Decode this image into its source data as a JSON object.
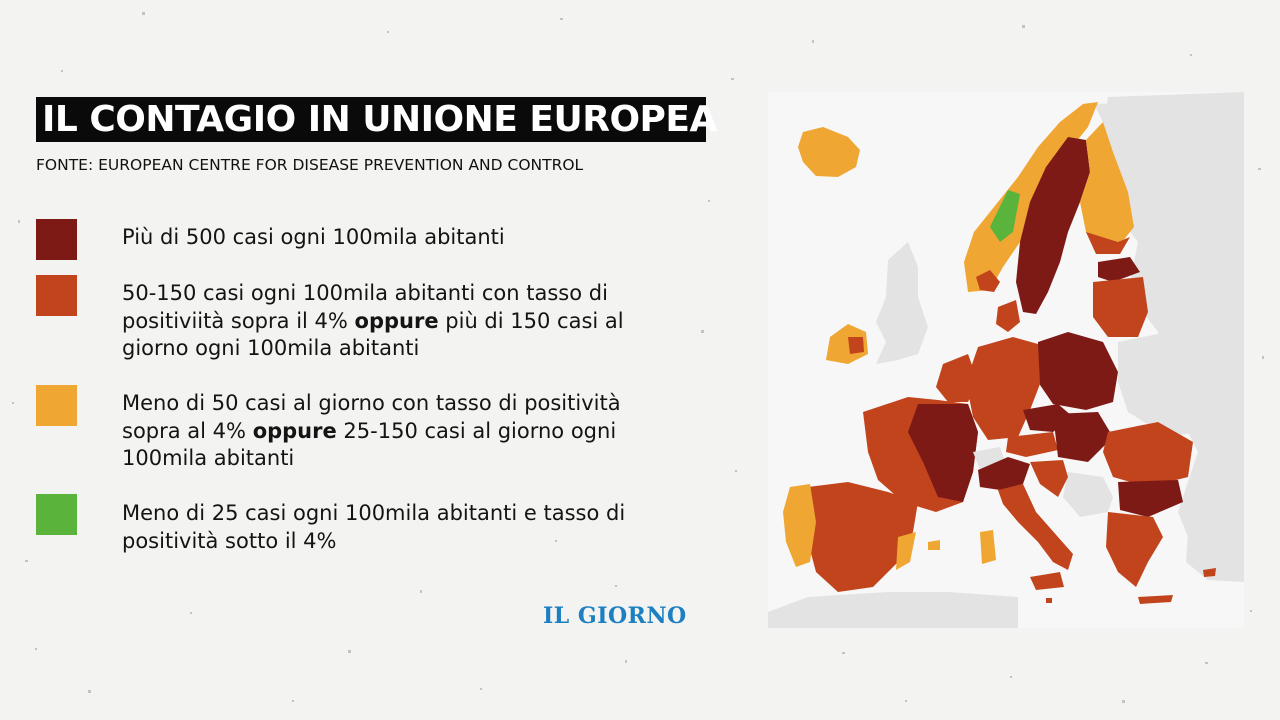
{
  "header": {
    "title": "IL CONTAGIO IN UNIONE EUROPEA",
    "source": "FONTE: EUROPEAN CENTRE FOR DISEASE PREVENTION AND CONTROL"
  },
  "legend": {
    "items": [
      {
        "color": "#7e1a16",
        "text": "Più di 500 casi ogni 100mila abitanti"
      },
      {
        "color": "#c1441c",
        "text_a": "50-150 casi ogni 100mila abitanti con tasso di positiviità sopra il 4%",
        "bold": "oppure",
        "text_b": "più di 150 casi al giorno ogni 100mila abitanti"
      },
      {
        "color": "#efa632",
        "text_a": "Meno di 50 casi al giorno con tasso di positività sopra al 4%",
        "bold": "oppure",
        "text_b": "25-150 casi al giorno ogni 100mila abitanti"
      },
      {
        "color": "#5ab33b",
        "text": "Meno di 25 casi ogni 100mila abitanti e tasso di positività sotto il 4%"
      }
    ]
  },
  "logo": {
    "text": "IL GIORNO"
  },
  "map": {
    "colors": {
      "very_high": "#7e1a16",
      "high": "#c1441c",
      "medium": "#efa632",
      "low": "#5ab33b",
      "no_data": "#cfcfcf",
      "outside_eu": "#e3e3e3",
      "sea": "#f7f7f7"
    }
  }
}
